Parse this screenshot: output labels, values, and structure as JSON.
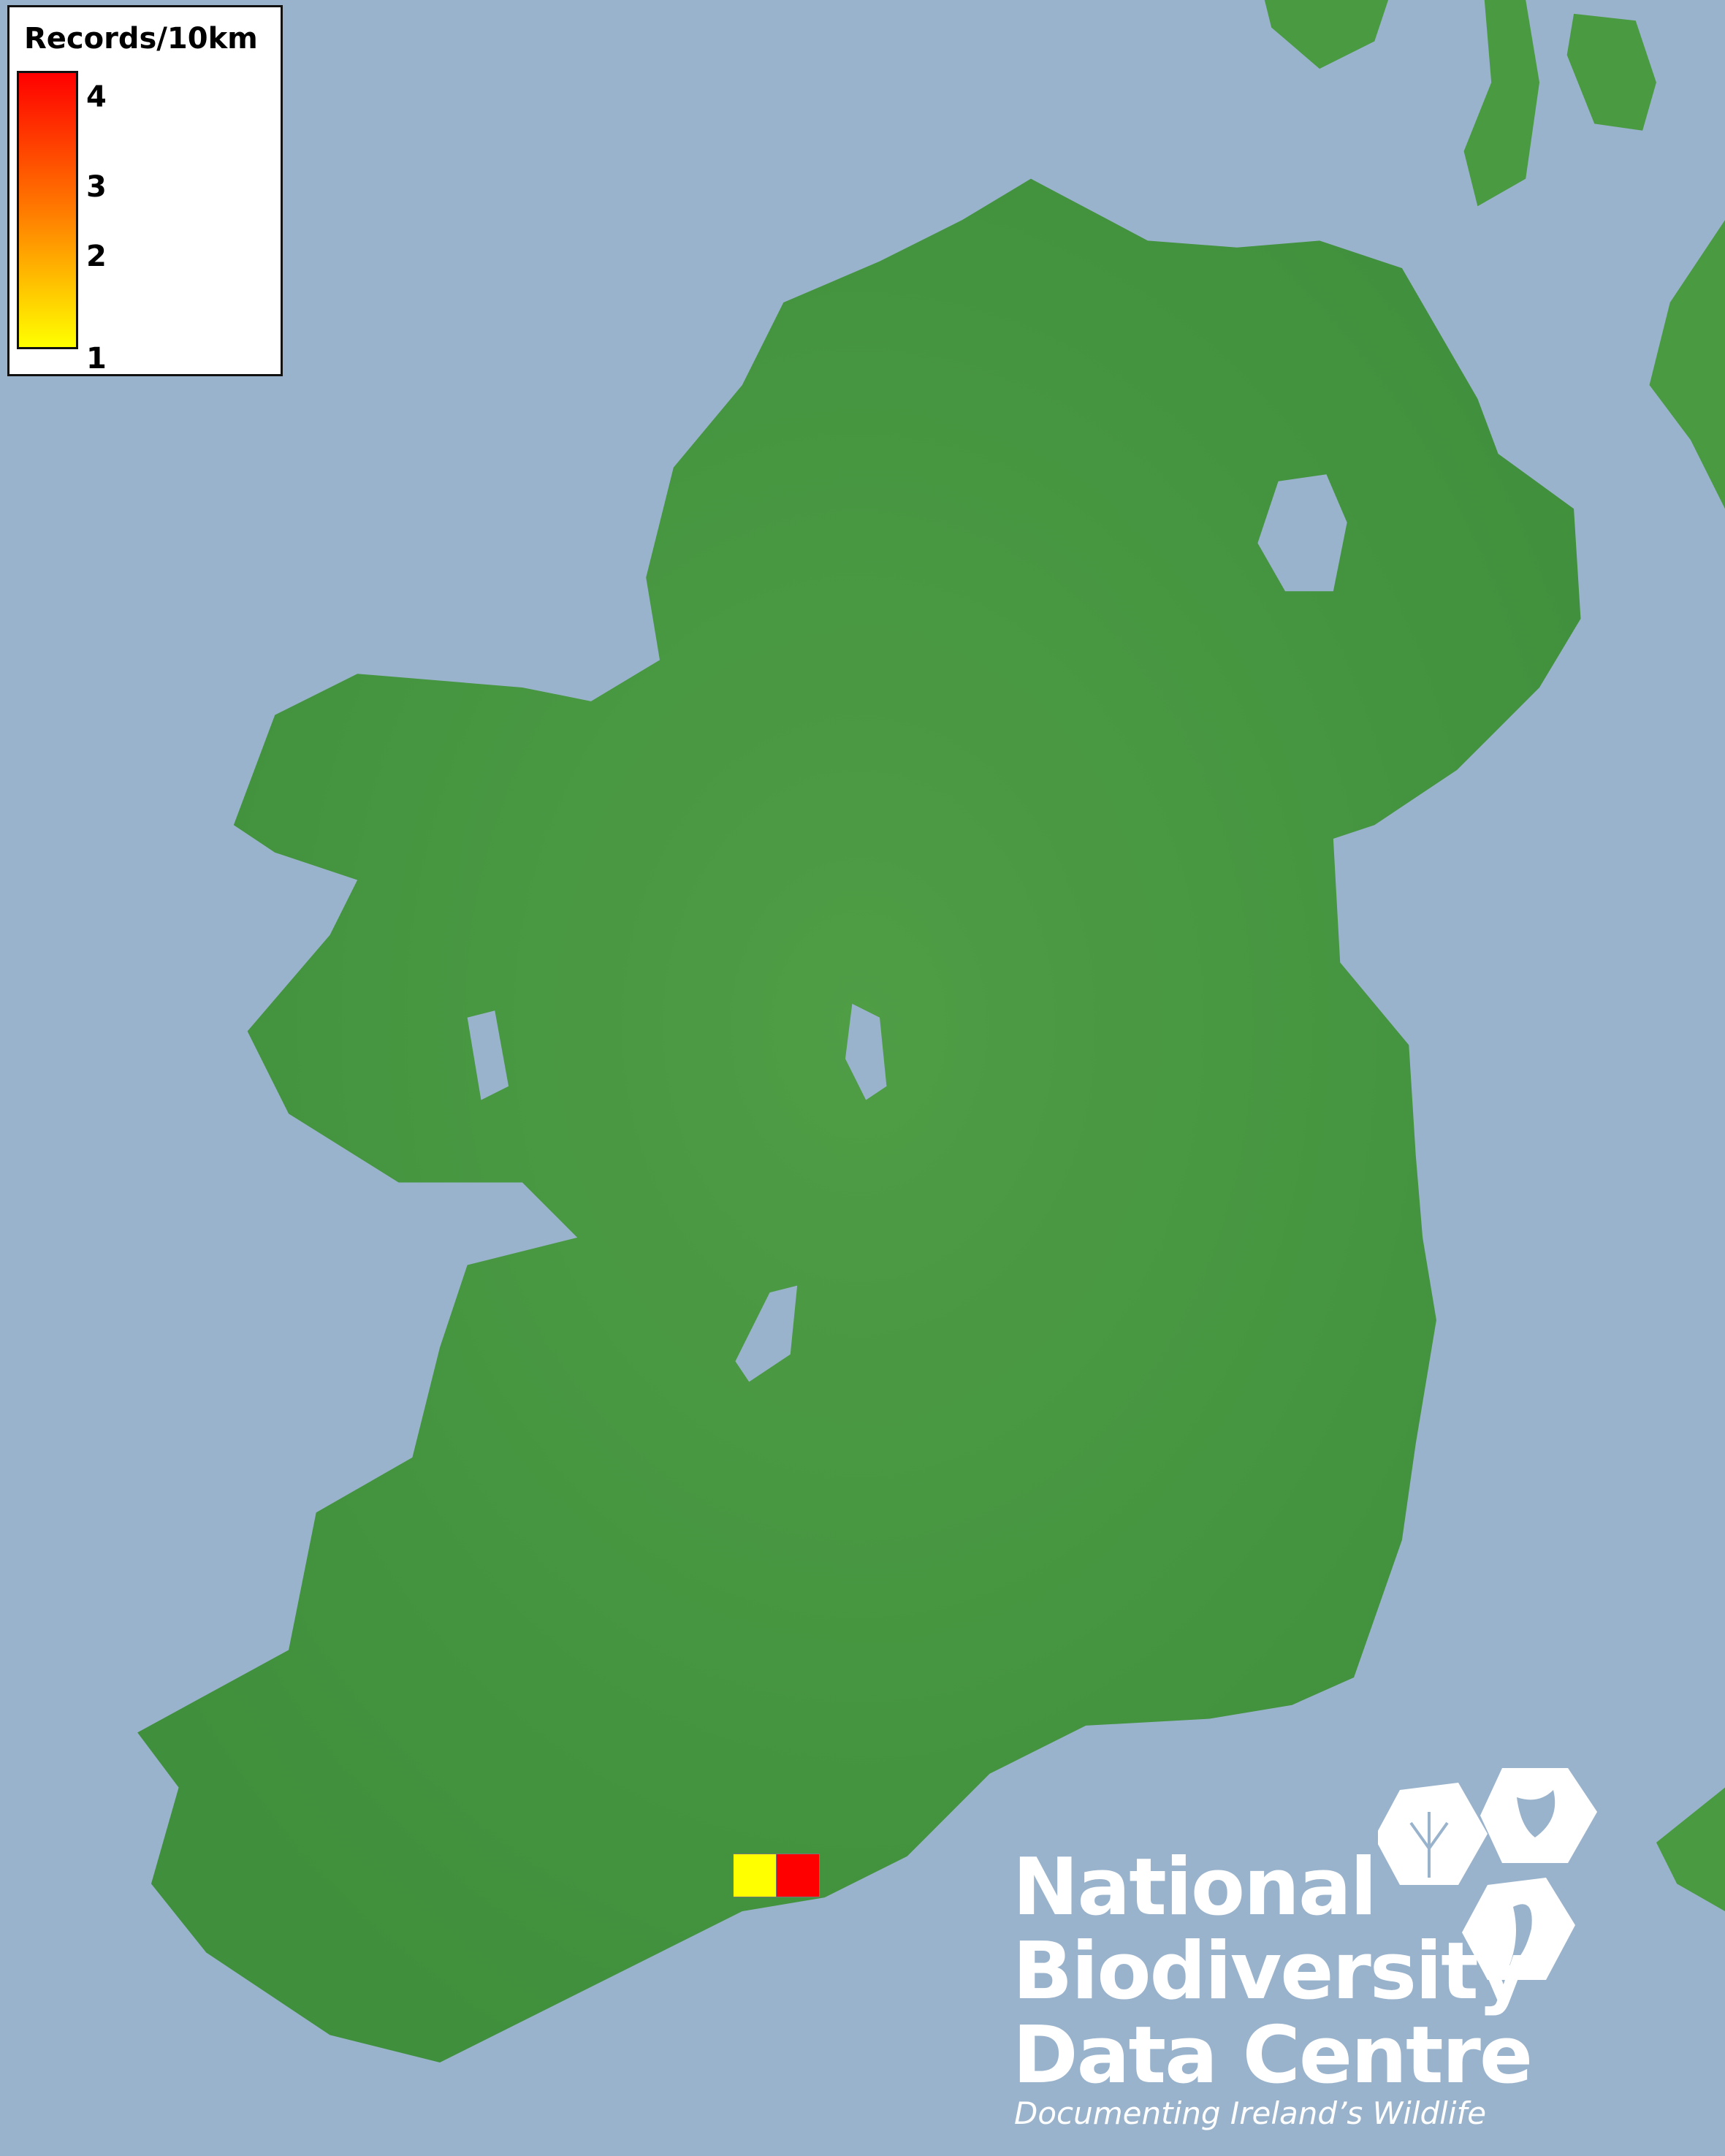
{
  "legend": {
    "title": "Records/10km",
    "ticks": [
      "4",
      "3",
      "2",
      "1"
    ],
    "color_max": "#ff0000",
    "color_min": "#ffff00"
  },
  "map": {
    "sea_color": "#9ab3cc",
    "land_color": "#4a9a42",
    "records": [
      {
        "value": 1,
        "color": "#ffff00"
      },
      {
        "value": 4,
        "color": "#ff0000"
      }
    ]
  },
  "logo": {
    "line1": "National",
    "line2": "Biodiversity",
    "line3": "Data Centre",
    "tagline": "Documenting Ireland’s Wildlife"
  }
}
